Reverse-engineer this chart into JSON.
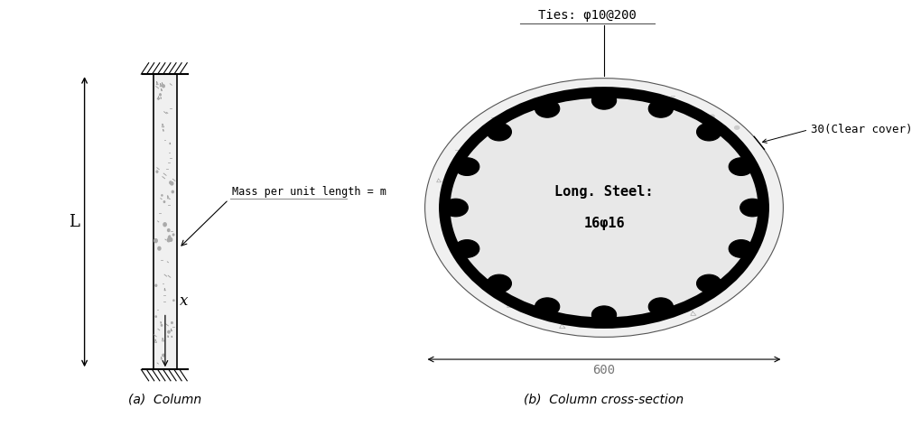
{
  "fig_width": 10.0,
  "fig_height": 4.48,
  "bg_color": "#ffffff",
  "subtitle_a": "(a)  Column",
  "subtitle_b": "(b)  Column cross-section",
  "ties_label": "Ties: φ10@200",
  "long_steel_line1": "Long. Steel:",
  "long_steel_line2": "16φ16",
  "clear_cover_label": "30(Clear cover)",
  "dim_label": "600",
  "mass_label": "Mass per unit length = m",
  "x_label": "x",
  "L_label": "L",
  "color_black": "#000000",
  "color_gray": "#888888",
  "color_concrete_fill": "#f0f0f0",
  "color_inner_fill": "#e8e8e8"
}
